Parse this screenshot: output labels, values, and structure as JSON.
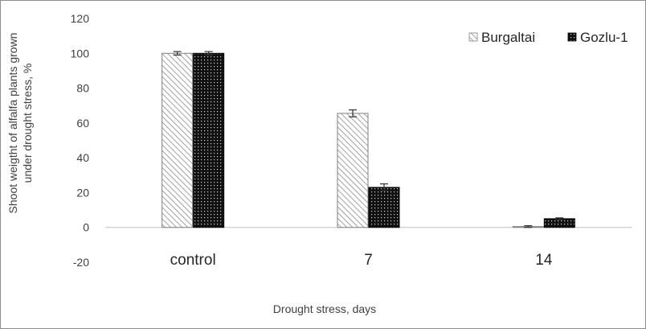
{
  "chart_data": {
    "type": "bar",
    "categories": [
      "control",
      "7",
      "14"
    ],
    "series": [
      {
        "name": "Burgaltai",
        "values": [
          100,
          65.5,
          0.5
        ],
        "errors": [
          1,
          2,
          0.5
        ],
        "pattern": "hatch"
      },
      {
        "name": "Gozlu-1",
        "values": [
          100,
          23,
          5
        ],
        "errors": [
          1,
          2,
          0.5
        ],
        "pattern": "dots"
      }
    ],
    "xlabel": "Drought stress, days",
    "ylabel_lines": [
      "Shoot weigtht of alfalfa plants grown",
      "under drought stress, %"
    ],
    "ylim": [
      -20,
      120
    ],
    "yticks": [
      -20,
      0,
      20,
      40,
      60,
      80,
      100,
      120
    ],
    "grid": false,
    "legend_position": "top-right"
  }
}
